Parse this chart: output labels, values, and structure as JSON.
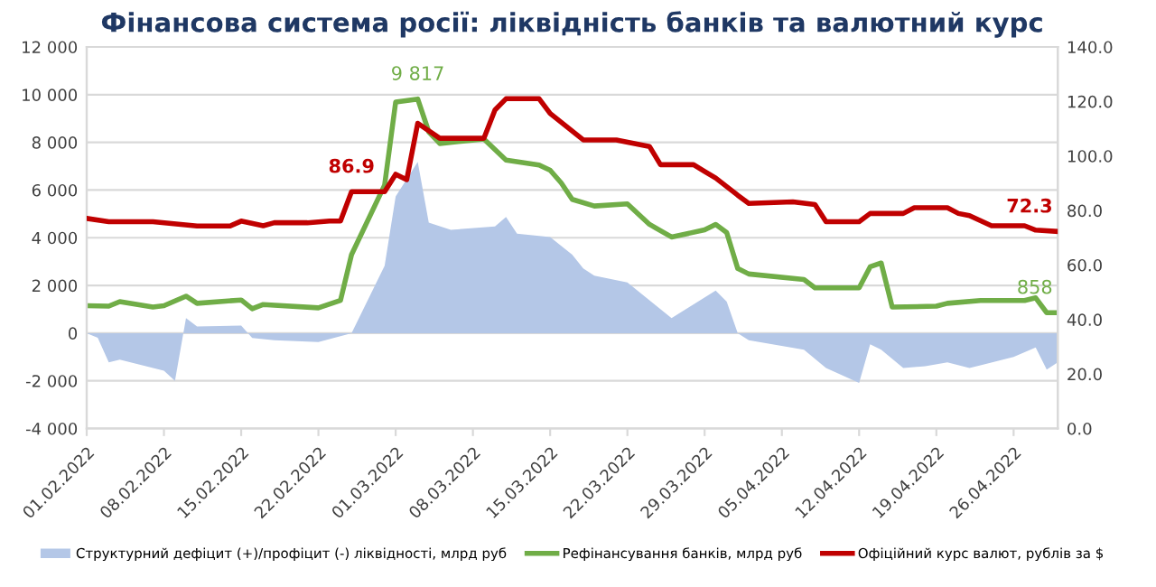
{
  "chart_data": {
    "type": "line",
    "title": "Фінансова система росії: ліквідність банків та валютний курс",
    "xlim": [
      "2022-02-01",
      "2022-04-30"
    ],
    "xticks": [
      {
        "value": "2022-02-01",
        "label": "01.02.2022"
      },
      {
        "value": "2022-02-08",
        "label": "08.02.2022"
      },
      {
        "value": "2022-02-15",
        "label": "15.02.2022"
      },
      {
        "value": "2022-02-22",
        "label": "22.02.2022"
      },
      {
        "value": "2022-03-01",
        "label": "01.03.2022"
      },
      {
        "value": "2022-03-08",
        "label": "08.03.2022"
      },
      {
        "value": "2022-03-15",
        "label": "15.03.2022"
      },
      {
        "value": "2022-03-22",
        "label": "22.03.2022"
      },
      {
        "value": "2022-03-29",
        "label": "29.03.2022"
      },
      {
        "value": "2022-04-05",
        "label": "05.04.2022"
      },
      {
        "value": "2022-04-12",
        "label": "12.04.2022"
      },
      {
        "value": "2022-04-19",
        "label": "19.04.2022"
      },
      {
        "value": "2022-04-26",
        "label": "26.04.2022"
      }
    ],
    "ylim": [
      -4000,
      12000
    ],
    "yticks": [
      {
        "value": -4000,
        "label": "-4 000"
      },
      {
        "value": -2000,
        "label": "-2 000"
      },
      0,
      {
        "value": 2000,
        "label": "2 000"
      },
      {
        "value": 4000,
        "label": "4 000"
      },
      {
        "value": 6000,
        "label": "6 000"
      },
      {
        "value": 8000,
        "label": "8 000"
      },
      {
        "value": 10000,
        "label": "10 000"
      },
      {
        "value": 12000,
        "label": "12 000"
      }
    ],
    "y2lim": [
      0,
      140
    ],
    "y2ticks": [
      {
        "value": 0,
        "label": "0.0"
      },
      {
        "value": 20,
        "label": "20.0"
      },
      {
        "value": 40,
        "label": "40.0"
      },
      {
        "value": 60,
        "label": "60.0"
      },
      {
        "value": 80,
        "label": "80.0"
      },
      {
        "value": 100,
        "label": "100.0"
      },
      {
        "value": 120,
        "label": "120.0"
      },
      {
        "value": 140,
        "label": "140.0"
      }
    ],
    "grid": "y",
    "legend": "bottom",
    "series": [
      {
        "name": "Структурний дефіцит (+)/профіцит (-) ліквідності, млрд руб",
        "type": "area",
        "color": "#b4c7e7",
        "x": [
          "2022-02-01",
          "2022-02-02",
          "2022-02-03",
          "2022-02-04",
          "2022-02-08",
          "2022-02-09",
          "2022-02-10",
          "2022-02-11",
          "2022-02-15",
          "2022-02-16",
          "2022-02-18",
          "2022-02-22",
          "2022-02-25",
          "2022-02-28",
          "2022-03-01",
          "2022-03-03",
          "2022-03-04",
          "2022-03-06",
          "2022-03-10",
          "2022-03-11",
          "2022-03-12",
          "2022-03-15",
          "2022-03-17",
          "2022-03-18",
          "2022-03-19",
          "2022-03-22",
          "2022-03-26",
          "2022-03-30",
          "2022-03-31",
          "2022-04-01",
          "2022-04-02",
          "2022-04-07",
          "2022-04-09",
          "2022-04-12",
          "2022-04-13",
          "2022-04-14",
          "2022-04-16",
          "2022-04-18",
          "2022-04-20",
          "2022-04-22",
          "2022-04-23",
          "2022-04-26",
          "2022-04-28",
          "2022-04-29",
          "2022-04-30"
        ],
        "values": [
          0,
          -190,
          -1230,
          -1110,
          -1580,
          -2000,
          630,
          280,
          320,
          -200,
          -300,
          -370,
          0,
          2830,
          5730,
          7180,
          4630,
          4330,
          4470,
          4870,
          4170,
          4030,
          3290,
          2710,
          2410,
          2130,
          630,
          1780,
          1320,
          0,
          -300,
          -700,
          -1460,
          -2090,
          -470,
          -700,
          -1460,
          -1390,
          -1230,
          -1460,
          -1350,
          -1000,
          -600,
          -1530,
          -1230
        ]
      },
      {
        "name": "Рефінансування банків, млрд руб",
        "color": "#70ad47",
        "x": [
          "2022-02-01",
          "2022-02-03",
          "2022-02-04",
          "2022-02-07",
          "2022-02-08",
          "2022-02-10",
          "2022-02-11",
          "2022-02-15",
          "2022-02-16",
          "2022-02-17",
          "2022-02-22",
          "2022-02-24",
          "2022-02-25",
          "2022-02-28",
          "2022-03-01",
          "2022-03-03",
          "2022-03-04",
          "2022-03-05",
          "2022-03-09",
          "2022-03-11",
          "2022-03-14",
          "2022-03-15",
          "2022-03-16",
          "2022-03-17",
          "2022-03-19",
          "2022-03-22",
          "2022-03-24",
          "2022-03-26",
          "2022-03-29",
          "2022-03-30",
          "2022-03-31",
          "2022-04-01",
          "2022-04-02",
          "2022-04-07",
          "2022-04-08",
          "2022-04-12",
          "2022-04-13",
          "2022-04-14",
          "2022-04-15",
          "2022-04-19",
          "2022-04-20",
          "2022-04-23",
          "2022-04-27",
          "2022-04-28",
          "2022-04-29",
          "2022-04-30"
        ],
        "values": [
          1150,
          1130,
          1320,
          1090,
          1150,
          1550,
          1250,
          1390,
          1020,
          1200,
          1060,
          1370,
          3290,
          6210,
          9690,
          9817,
          8440,
          7950,
          8140,
          7260,
          7050,
          6830,
          6300,
          5610,
          5330,
          5420,
          4560,
          4030,
          4330,
          4560,
          4220,
          2710,
          2480,
          2250,
          1900,
          1900,
          2780,
          2940,
          1090,
          1130,
          1250,
          1370,
          1370,
          1480,
          858,
          858
        ],
        "value_labels": [
          null,
          null,
          null,
          null,
          null,
          null,
          null,
          null,
          null,
          null,
          null,
          null,
          null,
          null,
          null,
          "9 817",
          null,
          null,
          null,
          null,
          null,
          null,
          null,
          null,
          null,
          null,
          null,
          null,
          null,
          null,
          null,
          null,
          null,
          null,
          null,
          null,
          null,
          null,
          null,
          null,
          null,
          null,
          null,
          null,
          null,
          "858"
        ]
      },
      {
        "name": "Офіційний курс валют, рублів за $",
        "type": "line",
        "axis": "y2",
        "color": "#c00000",
        "x": [
          "2022-02-01",
          "2022-02-03",
          "2022-02-07",
          "2022-02-11",
          "2022-02-14",
          "2022-02-15",
          "2022-02-17",
          "2022-02-18",
          "2022-02-21",
          "2022-02-23",
          "2022-02-24",
          "2022-02-25",
          "2022-02-28",
          "2022-03-01",
          "2022-03-02",
          "2022-03-03",
          "2022-03-05",
          "2022-03-09",
          "2022-03-10",
          "2022-03-11",
          "2022-03-14",
          "2022-03-15",
          "2022-03-18",
          "2022-03-21",
          "2022-03-24",
          "2022-03-25",
          "2022-03-28",
          "2022-03-29",
          "2022-03-30",
          "2022-04-01",
          "2022-04-02",
          "2022-04-06",
          "2022-04-08",
          "2022-04-09",
          "2022-04-12",
          "2022-04-13",
          "2022-04-16",
          "2022-04-17",
          "2022-04-20",
          "2022-04-21",
          "2022-04-22",
          "2022-04-24",
          "2022-04-27",
          "2022-04-28",
          "2022-04-30"
        ],
        "values": [
          77.1,
          75.9,
          75.9,
          74.3,
          74.3,
          76.1,
          74.4,
          75.5,
          75.5,
          76.1,
          76.1,
          86.9,
          86.9,
          93.3,
          91.3,
          112,
          106.5,
          106.5,
          116.9,
          121,
          121,
          115.6,
          105.9,
          105.9,
          103.5,
          96.8,
          96.8,
          94.3,
          91.9,
          85.6,
          82.6,
          83.2,
          82.2,
          75.9,
          75.9,
          78.9,
          78.9,
          81.0,
          81.0,
          78.9,
          78.1,
          74.4,
          74.4,
          72.8,
          72.3
        ],
        "value_labels": [
          null,
          null,
          null,
          null,
          null,
          null,
          null,
          null,
          null,
          null,
          null,
          "86.9",
          null,
          null,
          null,
          null,
          null,
          null,
          null,
          null,
          null,
          null,
          null,
          null,
          null,
          null,
          null,
          null,
          null,
          null,
          null,
          null,
          null,
          null,
          null,
          null,
          null,
          null,
          null,
          null,
          null,
          null,
          null,
          null,
          "72.3"
        ]
      }
    ]
  }
}
